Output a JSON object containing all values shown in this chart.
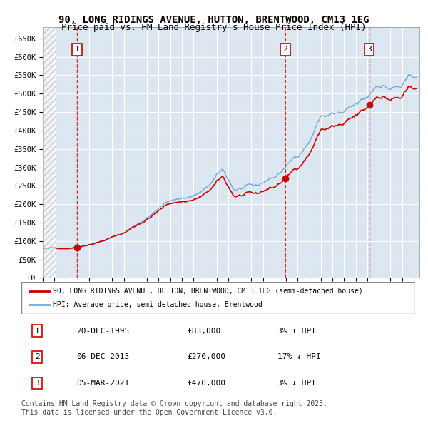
{
  "title_line1": "90, LONG RIDINGS AVENUE, HUTTON, BRENTWOOD, CM13 1EG",
  "title_line2": "Price paid vs. HM Land Registry's House Price Index (HPI)",
  "legend_red": "90, LONG RIDINGS AVENUE, HUTTON, BRENTWOOD, CM13 1EG (semi-detached house)",
  "legend_blue": "HPI: Average price, semi-detached house, Brentwood",
  "sale1_date": "20-DEC-1995",
  "sale1_price": 83000,
  "sale1_label": "3% ↑ HPI",
  "sale2_date": "06-DEC-2013",
  "sale2_price": 270000,
  "sale2_label": "17% ↓ HPI",
  "sale3_date": "05-MAR-2021",
  "sale3_price": 470000,
  "sale3_label": "3% ↓ HPI",
  "sale1_year": 1995.96,
  "sale2_year": 2013.92,
  "sale3_year": 2021.17,
  "ylim_min": 0,
  "ylim_max": 680000,
  "ytick_step": 50000,
  "background_color": "#dce6f1",
  "plot_bg_color": "#dce6f1",
  "red_color": "#cc0000",
  "blue_color": "#6fa8d4",
  "grid_color": "#ffffff",
  "copyright_text": "Contains HM Land Registry data © Crown copyright and database right 2025.\nThis data is licensed under the Open Government Licence v3.0.",
  "footnote_fontsize": 7
}
